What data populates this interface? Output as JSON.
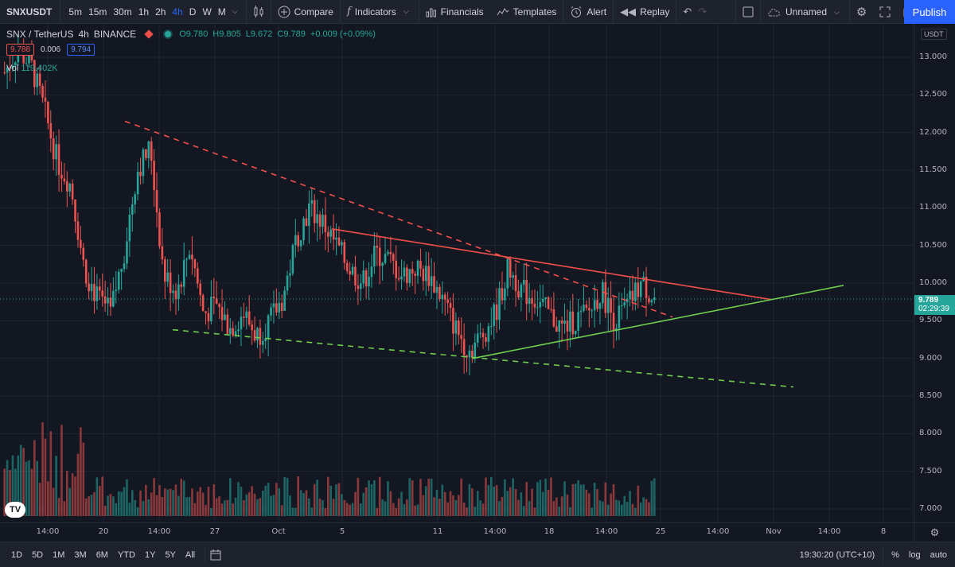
{
  "toolbar": {
    "symbol": "SNXUSDT",
    "intervals": [
      "5m",
      "15m",
      "30m",
      "1h",
      "2h",
      "4h",
      "D",
      "W",
      "M"
    ],
    "active_interval": "4h",
    "compare": "Compare",
    "indicators": "Indicators",
    "financials": "Financials",
    "templates": "Templates",
    "alert": "Alert",
    "replay": "Replay",
    "layout_name": "Unnamed",
    "publish": "Publish"
  },
  "legend": {
    "symbol_desc": "SNX / TetherUS",
    "interval": "4h",
    "exchange": "BINANCE",
    "o": "O9.780",
    "h": "H9.805",
    "l": "L9.672",
    "c": "C9.789",
    "change": "+0.009 (+0.09%)",
    "bid": "9.788",
    "spread": "0.006",
    "ask": "9.794",
    "vol_label": "Vol",
    "vol_value": "119.402K"
  },
  "price_scale": {
    "currency": "USDT",
    "ticks": [
      "13.000",
      "12.500",
      "12.000",
      "11.500",
      "11.000",
      "10.500",
      "10.000",
      "9.500",
      "9.000",
      "8.500",
      "8.000",
      "7.500",
      "7.000"
    ],
    "last_price": "9.789",
    "countdown": "02:29:39"
  },
  "time_axis": {
    "ticks": [
      "14:00",
      "20",
      "14:00",
      "27",
      "Oct",
      "5",
      "11",
      "14:00",
      "18",
      "14:00",
      "25",
      "14:00",
      "Nov",
      "14:00",
      "8"
    ]
  },
  "bottom": {
    "ranges": [
      "1D",
      "5D",
      "1M",
      "3M",
      "6M",
      "YTD",
      "1Y",
      "5Y",
      "All"
    ],
    "clock": "19:30:20 (UTC+10)",
    "percent": "%",
    "log": "log",
    "auto": "auto"
  },
  "colors": {
    "up": "#26a69a",
    "down": "#ef5350",
    "resistance": "#f0504a",
    "support": "#6fce4e",
    "accent": "#2962ff"
  },
  "chart_data": {
    "type": "candlestick",
    "symbol": "SNXUSDT",
    "interval": "4h",
    "ylim": [
      6.7,
      13.4
    ],
    "trendlines": [
      {
        "style": "dashed",
        "color": "red",
        "from": {
          "date": "Sep 22",
          "price": 12.15
        },
        "to": {
          "date": "Oct 24",
          "price": 9.55
        }
      },
      {
        "style": "solid",
        "color": "red",
        "from": {
          "date": "Oct 4",
          "price": 10.72
        },
        "to": {
          "date": "Oct 29",
          "price": 9.78
        }
      },
      {
        "style": "solid",
        "color": "green",
        "from": {
          "date": "Oct 13",
          "price": 9.0
        },
        "to": {
          "date": "Oct 31",
          "price": 9.97
        }
      },
      {
        "style": "dashed",
        "color": "green",
        "from": {
          "date": "Sep 24",
          "price": 9.38
        },
        "to": {
          "date": "Oct 30",
          "price": 8.62
        }
      }
    ],
    "close_path": [
      12.8,
      13.1,
      12.9,
      12.3,
      11.6,
      11.3,
      10.2,
      9.8,
      9.6,
      10.4,
      11.5,
      11.8,
      10.1,
      9.9,
      10.5,
      9.6,
      9.7,
      9.4,
      9.6,
      9.3,
      9.5,
      9.8,
      10.6,
      11.0,
      10.8,
      10.5,
      10.2,
      10.0,
      10.4,
      10.3,
      10.1,
      10.2,
      10.1,
      9.8,
      9.4,
      9.1,
      9.3,
      9.6,
      10.2,
      9.9,
      9.8,
      9.6,
      9.4,
      9.5,
      9.6,
      9.9,
      9.5,
      9.7,
      10.0,
      9.8
    ]
  }
}
